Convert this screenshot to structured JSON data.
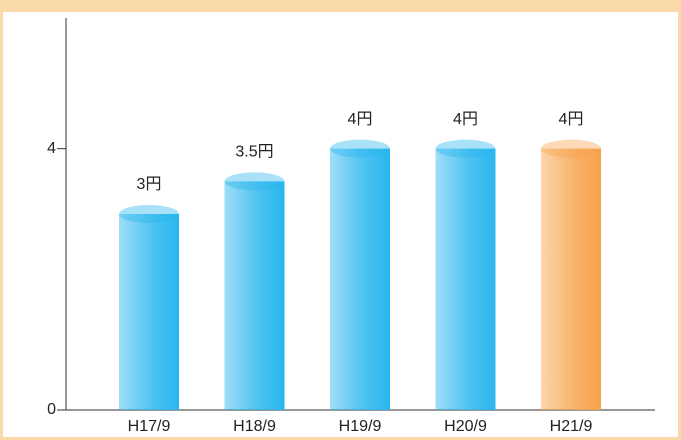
{
  "chart_data": {
    "type": "bar",
    "categories": [
      "H17/9",
      "H18/9",
      "H19/9",
      "H20/9",
      "H21/9"
    ],
    "values": [
      3,
      3.5,
      4,
      4,
      4
    ],
    "value_labels": [
      "3円",
      "3.5円",
      "4円",
      "4円",
      "4円"
    ],
    "colors": [
      "#29b6ee",
      "#29b6ee",
      "#29b6ee",
      "#29b6ee",
      "#f7a24a"
    ],
    "ylim": [
      0,
      6
    ],
    "yticks": [
      0,
      4
    ],
    "grid": false
  }
}
